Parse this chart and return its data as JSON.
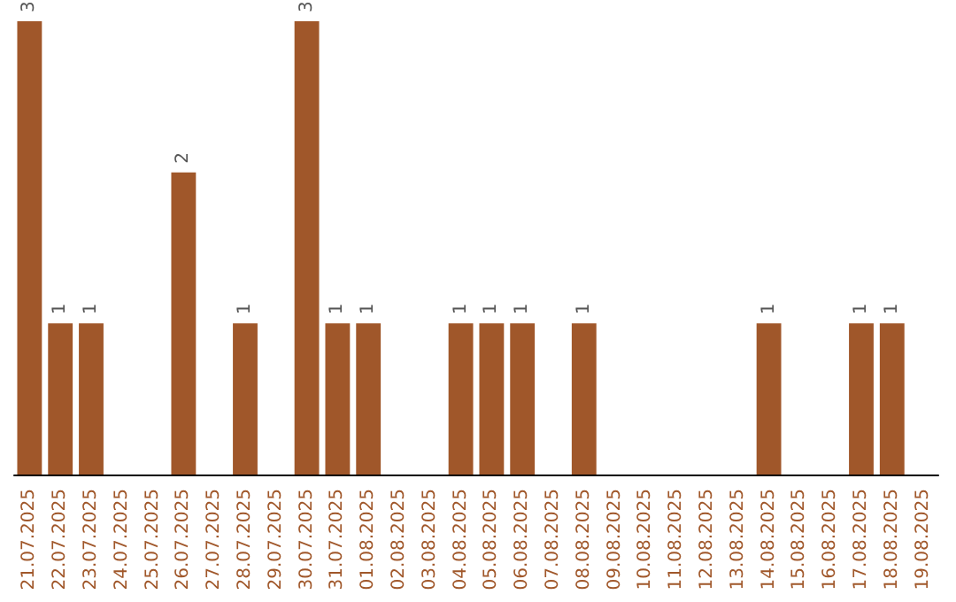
{
  "chart_data": {
    "type": "bar",
    "categories": [
      "21.07.2025",
      "22.07.2025",
      "23.07.2025",
      "24.07.2025",
      "25.07.2025",
      "26.07.2025",
      "27.07.2025",
      "28.07.2025",
      "29.07.2025",
      "30.07.2025",
      "31.07.2025",
      "01.08.2025",
      "02.08.2025",
      "03.08.2025",
      "04.08.2025",
      "05.08.2025",
      "06.08.2025",
      "07.08.2025",
      "08.08.2025",
      "09.08.2025",
      "10.08.2025",
      "11.08.2025",
      "12.08.2025",
      "13.08.2025",
      "14.08.2025",
      "15.08.2025",
      "16.08.2025",
      "17.08.2025",
      "18.08.2025",
      "19.08.2025"
    ],
    "values": [
      3,
      1,
      1,
      0,
      0,
      2,
      0,
      1,
      0,
      3,
      1,
      1,
      0,
      0,
      1,
      1,
      1,
      0,
      1,
      0,
      0,
      0,
      0,
      0,
      1,
      0,
      0,
      1,
      1,
      0
    ],
    "value_labels": [
      "3",
      "1",
      "1",
      null,
      null,
      "2",
      null,
      "1",
      null,
      "3",
      "1",
      "1",
      null,
      null,
      "1",
      "1",
      "1",
      null,
      "1",
      null,
      null,
      null,
      null,
      null,
      "1",
      null,
      null,
      "1",
      "1",
      null
    ],
    "color": "#a0572a",
    "grid": false
  }
}
